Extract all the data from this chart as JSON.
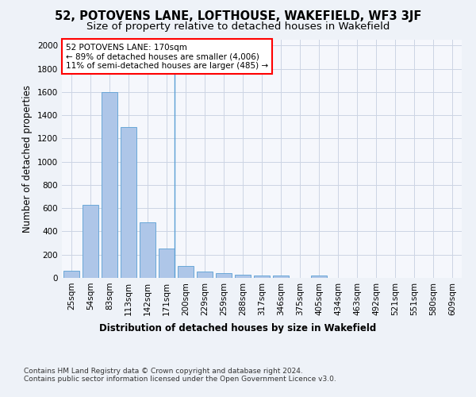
{
  "title": "52, POTOVENS LANE, LOFTHOUSE, WAKEFIELD, WF3 3JF",
  "subtitle": "Size of property relative to detached houses in Wakefield",
  "xlabel": "Distribution of detached houses by size in Wakefield",
  "ylabel": "Number of detached properties",
  "categories": [
    "25sqm",
    "54sqm",
    "83sqm",
    "113sqm",
    "142sqm",
    "171sqm",
    "200sqm",
    "229sqm",
    "259sqm",
    "288sqm",
    "317sqm",
    "346sqm",
    "375sqm",
    "405sqm",
    "434sqm",
    "463sqm",
    "492sqm",
    "521sqm",
    "551sqm",
    "580sqm",
    "609sqm"
  ],
  "values": [
    60,
    630,
    1600,
    1300,
    475,
    250,
    100,
    55,
    38,
    30,
    22,
    18,
    0,
    18,
    0,
    0,
    0,
    0,
    0,
    0,
    0
  ],
  "bar_color": "#aec6e8",
  "bar_edge_color": "#5a9fd4",
  "highlight_index": 5,
  "annotation_box_text": "52 POTOVENS LANE: 170sqm\n← 89% of detached houses are smaller (4,006)\n11% of semi-detached houses are larger (485) →",
  "annotation_box_color": "red",
  "ylim": [
    0,
    2050
  ],
  "yticks": [
    0,
    200,
    400,
    600,
    800,
    1000,
    1200,
    1400,
    1600,
    1800,
    2000
  ],
  "footer": "Contains HM Land Registry data © Crown copyright and database right 2024.\nContains public sector information licensed under the Open Government Licence v3.0.",
  "bg_color": "#eef2f8",
  "plot_bg_color": "#f5f7fc",
  "grid_color": "#ccd4e4",
  "title_fontsize": 10.5,
  "subtitle_fontsize": 9.5,
  "axis_label_fontsize": 8.5,
  "tick_fontsize": 7.5,
  "footer_fontsize": 6.5,
  "annot_fontsize": 7.5
}
